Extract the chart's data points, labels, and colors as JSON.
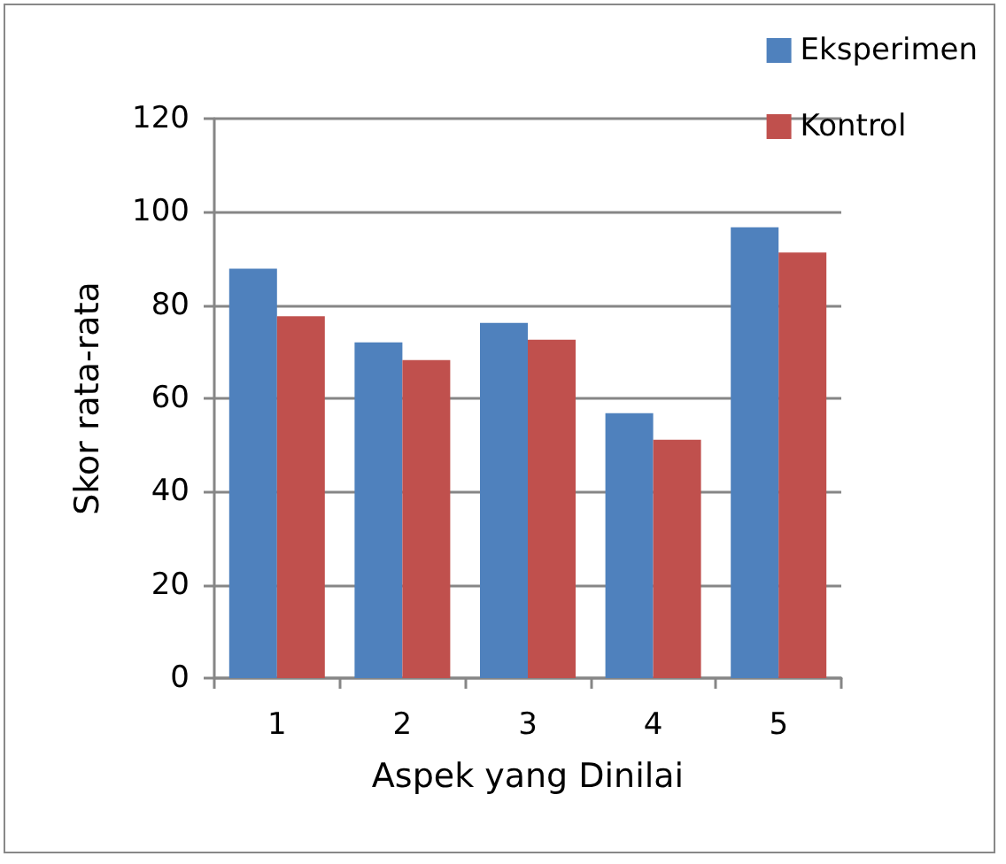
{
  "chart_data": {
    "type": "bar",
    "xlabel": "Aspek yang Dinilai",
    "ylabel": "Skor rata-rata",
    "categories": [
      "1",
      "2",
      "3",
      "4",
      "5"
    ],
    "series": [
      {
        "name": "Eksperimen",
        "color": "#4f81bd",
        "values": [
          87.8,
          72,
          76.2,
          56.8,
          96.7
        ]
      },
      {
        "name": "Kontrol",
        "color": "#c0504d",
        "values": [
          77.6,
          68.2,
          72.6,
          51.1,
          91.3
        ]
      }
    ],
    "ylim": [
      0,
      120
    ],
    "yticks": [
      0,
      20,
      40,
      60,
      80,
      100,
      120
    ],
    "grid": "y",
    "legend": "top right"
  }
}
